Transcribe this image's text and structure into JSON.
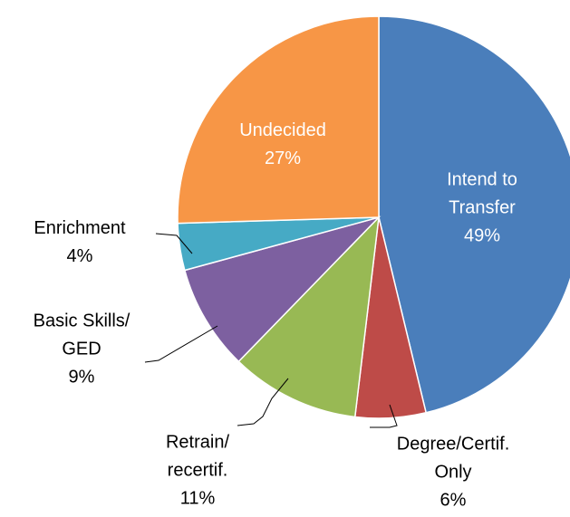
{
  "chart_data": {
    "type": "pie",
    "categories": [
      "Intend to Transfer",
      "Degree/Certif. Only",
      "Retrain/recertif.",
      "Basic Skills/GED",
      "Enrichment",
      "Undecided"
    ],
    "values": [
      49,
      6,
      11,
      9,
      4,
      27
    ],
    "value_labels": [
      "49%",
      "6%",
      "11%",
      "9%",
      "4%",
      "27%"
    ],
    "colors": [
      "#4a7ebb",
      "#be4b48",
      "#98b954",
      "#7d60a0",
      "#46aac5",
      "#f79646"
    ]
  }
}
